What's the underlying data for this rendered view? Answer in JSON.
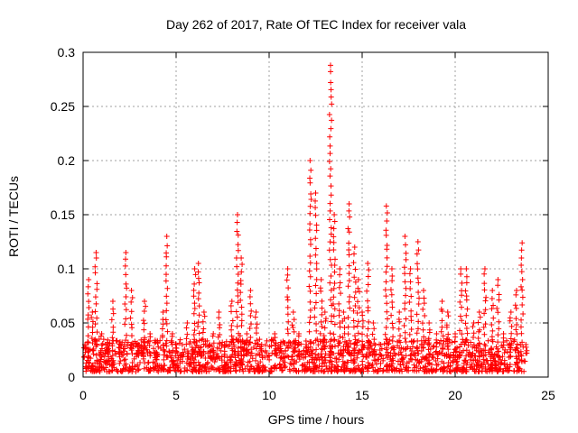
{
  "chart_data": {
    "type": "scatter",
    "title": "Day 262 of 2017, Rate Of TEC Index for receiver vala",
    "xlabel": "GPS time / hours",
    "ylabel": "ROTI / TECUs",
    "xlim": [
      0,
      25
    ],
    "ylim": [
      0,
      0.3
    ],
    "x_ticks": [
      0,
      5,
      10,
      15,
      20,
      25
    ],
    "y_ticks": [
      0,
      0.05,
      0.1,
      0.15,
      0.2,
      0.25,
      0.3
    ],
    "x_tick_labels": [
      "0",
      "5",
      "10",
      "15",
      "20",
      "25"
    ],
    "y_tick_labels": [
      "0",
      "0.05",
      "0.1",
      "0.15",
      "0.2",
      "0.25",
      "0.3"
    ],
    "grid": true,
    "marker": "+",
    "series": [
      {
        "name": "ROTI",
        "color": "#ff0000",
        "x": [
          0.1,
          0.3,
          0.5,
          0.7,
          1.0,
          1.3,
          1.6,
          2.0,
          2.3,
          2.6,
          3.0,
          3.3,
          3.6,
          4.0,
          4.3,
          4.5,
          4.8,
          5.0,
          5.3,
          5.6,
          6.0,
          6.2,
          6.5,
          6.8,
          7.0,
          7.3,
          7.6,
          8.0,
          8.3,
          8.5,
          8.8,
          9.0,
          9.3,
          9.6,
          10.0,
          10.3,
          10.6,
          11.0,
          11.3,
          11.6,
          12.0,
          12.2,
          12.5,
          12.8,
          13.0,
          13.3,
          13.5,
          13.8,
          14.0,
          14.3,
          14.6,
          14.8,
          15.0,
          15.3,
          15.6,
          16.0,
          16.3,
          16.6,
          17.0,
          17.3,
          17.6,
          18.0,
          18.3,
          18.6,
          19.0,
          19.3,
          19.6,
          20.0,
          20.3,
          20.6,
          21.0,
          21.3,
          21.6,
          22.0,
          22.3,
          22.6,
          23.0,
          23.3,
          23.6,
          23.8
        ],
        "y": [
          0.03,
          0.09,
          0.06,
          0.115,
          0.04,
          0.025,
          0.07,
          0.03,
          0.115,
          0.08,
          0.03,
          0.07,
          0.04,
          0.02,
          0.06,
          0.13,
          0.04,
          0.03,
          0.02,
          0.05,
          0.1,
          0.105,
          0.06,
          0.03,
          0.04,
          0.06,
          0.03,
          0.07,
          0.15,
          0.11,
          0.04,
          0.08,
          0.06,
          0.03,
          0.02,
          0.04,
          0.03,
          0.1,
          0.06,
          0.04,
          0.03,
          0.2,
          0.17,
          0.09,
          0.06,
          0.288,
          0.15,
          0.1,
          0.06,
          0.16,
          0.12,
          0.09,
          0.06,
          0.105,
          0.05,
          0.03,
          0.158,
          0.1,
          0.06,
          0.13,
          0.1,
          0.125,
          0.08,
          0.05,
          0.04,
          0.07,
          0.06,
          0.04,
          0.1,
          0.1,
          0.05,
          0.06,
          0.1,
          0.08,
          0.09,
          0.04,
          0.06,
          0.08,
          0.124,
          0.03
        ]
      }
    ]
  }
}
